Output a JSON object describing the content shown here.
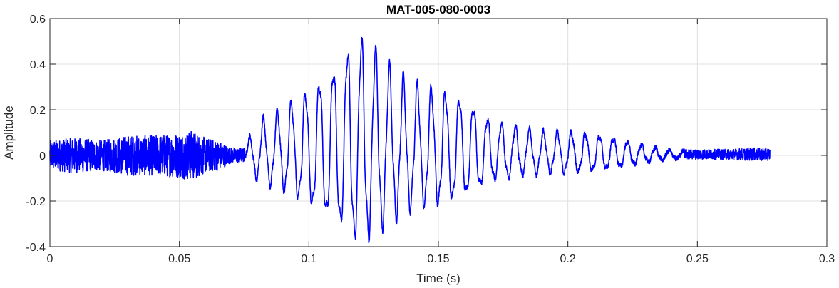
{
  "chart_data": {
    "type": "line",
    "title": "MAT-005-080-0003",
    "xlabel": "Time (s)",
    "ylabel": "Amplitude",
    "xlim": [
      0,
      0.3
    ],
    "ylim": [
      -0.4,
      0.6
    ],
    "xticks": [
      0,
      0.05,
      0.1,
      0.15,
      0.2,
      0.25,
      0.3
    ],
    "xtick_labels": [
      "0",
      "0.05",
      "0.1",
      "0.15",
      "0.2",
      "0.25",
      "0.3"
    ],
    "yticks": [
      -0.4,
      -0.2,
      0,
      0.2,
      0.4,
      0.6
    ],
    "ytick_labels": [
      "-0.4",
      "-0.2",
      "0",
      "0.2",
      "0.4",
      "0.6"
    ],
    "grid": true,
    "line_color": "#0000ff",
    "series": [
      {
        "x_start": 0,
        "x_end": 0.278,
        "description_envelope": [
          [
            0.0,
            0.06
          ],
          [
            0.01,
            0.07
          ],
          [
            0.02,
            0.06
          ],
          [
            0.03,
            0.08
          ],
          [
            0.04,
            0.08
          ],
          [
            0.05,
            0.09
          ],
          [
            0.055,
            0.1
          ],
          [
            0.06,
            0.07
          ],
          [
            0.065,
            0.06
          ],
          [
            0.07,
            0.03
          ],
          [
            0.075,
            0.03
          ],
          [
            0.08,
            0.14
          ],
          [
            0.09,
            0.2
          ],
          [
            0.1,
            0.28
          ],
          [
            0.11,
            0.38
          ],
          [
            0.115,
            0.45
          ],
          [
            0.12,
            0.5
          ],
          [
            0.125,
            0.46
          ],
          [
            0.13,
            0.38
          ],
          [
            0.14,
            0.3
          ],
          [
            0.15,
            0.28
          ],
          [
            0.16,
            0.24
          ],
          [
            0.17,
            0.15
          ],
          [
            0.18,
            0.12
          ],
          [
            0.19,
            0.1
          ],
          [
            0.2,
            0.1
          ],
          [
            0.21,
            0.09
          ],
          [
            0.22,
            0.07
          ],
          [
            0.23,
            0.04
          ],
          [
            0.24,
            0.02
          ],
          [
            0.25,
            0.02
          ],
          [
            0.26,
            0.02
          ],
          [
            0.27,
            0.025
          ],
          [
            0.278,
            0.025
          ]
        ]
      }
    ]
  }
}
